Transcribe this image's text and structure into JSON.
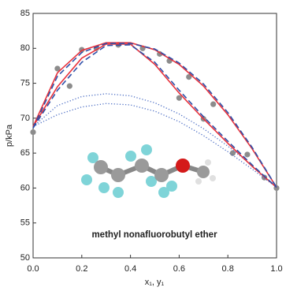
{
  "chart_data": {
    "type": "line",
    "y_label": "p/kPa",
    "x_label": "x₁, y₁",
    "annotation": "methyl nonafluorobutyl ether",
    "xlim": [
      0,
      1
    ],
    "ylim": [
      50,
      85
    ],
    "xticks": [
      {
        "value": 0,
        "label": "0.0"
      },
      0.2,
      0.4,
      0.6,
      0.8,
      {
        "value": 1,
        "label": "1.0"
      }
    ],
    "yticks": [
      50,
      55,
      60,
      65,
      70,
      75,
      80,
      85
    ],
    "grid": false,
    "series": [
      {
        "color": "#e8323c",
        "style": "solid",
        "x": [
          0,
          0.1,
          0.2,
          0.3,
          0.4,
          0.5,
          0.6,
          0.7,
          0.8,
          0.9,
          1
        ],
        "values": [
          68.8,
          76.5,
          79.7,
          80.8,
          80.8,
          79.8,
          77.7,
          74.6,
          70.5,
          65.6,
          60.1
        ]
      },
      {
        "color": "#e8323c",
        "style": "solid",
        "x": [
          0,
          0.1,
          0.2,
          0.3,
          0.4,
          0.5,
          0.6,
          0.7,
          0.8,
          0.9,
          1
        ],
        "values": [
          68.8,
          74.5,
          78.6,
          80.6,
          80.6,
          77.7,
          73.6,
          69.9,
          66.4,
          63.1,
          60.1
        ]
      },
      {
        "color": "#2e4fa8",
        "style": "dash",
        "x": [
          0,
          0.1,
          0.2,
          0.3,
          0.4,
          0.5,
          0.6,
          0.7,
          0.8,
          0.9,
          1
        ],
        "values": [
          68.6,
          76.0,
          79.4,
          80.7,
          80.7,
          79.9,
          77.9,
          74.9,
          70.8,
          65.8,
          60.1
        ]
      },
      {
        "color": "#2e4fa8",
        "style": "dash",
        "x": [
          0,
          0.1,
          0.2,
          0.3,
          0.4,
          0.5,
          0.6,
          0.7,
          0.8,
          0.9,
          1
        ],
        "values": [
          68.6,
          74.0,
          78.0,
          80.4,
          80.5,
          78.0,
          74.0,
          70.2,
          66.7,
          63.3,
          60.1
        ]
      },
      {
        "color": "#4a6cc4",
        "style": "dot",
        "x": [
          0,
          0.1,
          0.2,
          0.3,
          0.4,
          0.5,
          0.6,
          0.7,
          0.8,
          0.9,
          1
        ],
        "values": [
          68.8,
          71.8,
          73.1,
          73.5,
          73.2,
          72.2,
          70.6,
          68.5,
          66.0,
          63.2,
          60.1
        ]
      },
      {
        "color": "#4a6cc4",
        "style": "dot",
        "x": [
          0,
          0.1,
          0.2,
          0.3,
          0.4,
          0.5,
          0.6,
          0.7,
          0.8,
          0.9,
          1
        ],
        "values": [
          68.8,
          70.5,
          71.6,
          72.1,
          71.9,
          71.0,
          69.5,
          67.5,
          65.2,
          62.7,
          60.1
        ]
      },
      {
        "color": "#8c8c8c",
        "style": "marker",
        "x": [
          0,
          0.1,
          0.15,
          0.2,
          0.26,
          0.35,
          0.45,
          0.52,
          0.56,
          0.64,
          0.74,
          0.6,
          0.7,
          0.82,
          0.88,
          0.95,
          1
        ],
        "values": [
          68.0,
          77.1,
          74.6,
          79.8,
          80.0,
          80.5,
          80.0,
          79.2,
          78.2,
          75.9,
          72.0,
          72.9,
          69.9,
          65.0,
          64.8,
          61.5,
          60.0
        ]
      }
    ]
  }
}
